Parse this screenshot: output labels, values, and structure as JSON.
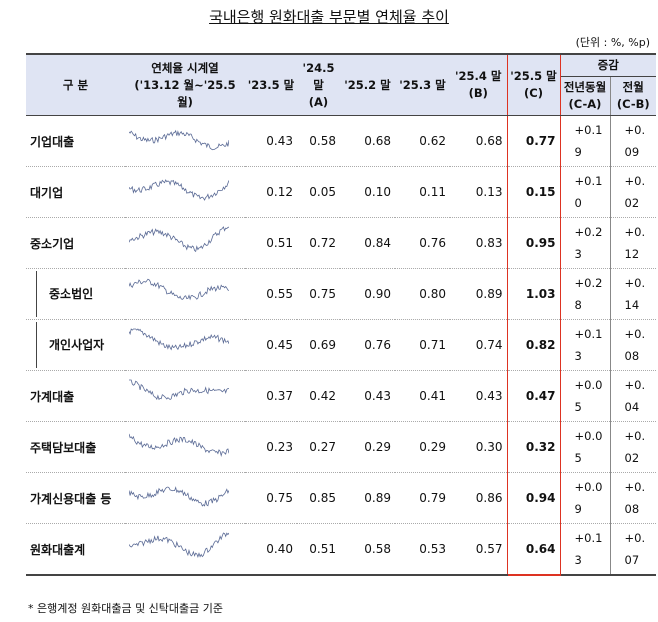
{
  "title": "국내은행 원화대출 부문별 연체율 추이",
  "unit": "(단위 : %, %p)",
  "columns": [
    {
      "label": "구 분"
    },
    {
      "label": "연체율 시계열",
      "sub": "('13.12 월~'25.5 월)"
    },
    {
      "label": "'23.5 말"
    },
    {
      "label": "'24.5 말",
      "sub": "(A)"
    },
    {
      "label": "'25.2 말"
    },
    {
      "label": "'25.3 말"
    },
    {
      "label": "'25.4 말",
      "sub": "(B)"
    },
    {
      "label": "'25.5 말",
      "sub": "(C)"
    }
  ],
  "change": {
    "label": "증감",
    "columns": [
      {
        "label": "전년동월",
        "sub": "(C-A)"
      },
      {
        "label": "전월",
        "sub": "(C-B)"
      }
    ]
  },
  "rows": [
    {
      "label": "기업대출",
      "values": [
        "0.43",
        "0.58",
        "0.68",
        "0.62",
        "0.68",
        "0.77"
      ],
      "change": [
        "+0.19",
        "+0.09"
      ]
    },
    {
      "label": "대기업",
      "values": [
        "0.12",
        "0.05",
        "0.10",
        "0.11",
        "0.13",
        "0.15"
      ],
      "change": [
        "+0.10",
        "+0.02"
      ]
    },
    {
      "label": "중소기업",
      "values": [
        "0.51",
        "0.72",
        "0.84",
        "0.76",
        "0.83",
        "0.95"
      ],
      "change": [
        "+0.23",
        "+0.12"
      ],
      "children": [
        {
          "label": "중소법인",
          "values": [
            "0.55",
            "0.75",
            "0.90",
            "0.80",
            "0.89",
            "1.03"
          ],
          "change": [
            "+0.28",
            "+0.14"
          ]
        },
        {
          "label": "개인사업자",
          "values": [
            "0.45",
            "0.69",
            "0.76",
            "0.71",
            "0.74",
            "0.82"
          ],
          "change": [
            "+0.13",
            "+0.08"
          ]
        }
      ]
    },
    {
      "label": "가계대출",
      "values": [
        "0.37",
        "0.42",
        "0.43",
        "0.41",
        "0.43",
        "0.47"
      ],
      "change": [
        "+0.05",
        "+0.04"
      ]
    },
    {
      "label": "주택담보대출",
      "values": [
        "0.23",
        "0.27",
        "0.29",
        "0.29",
        "0.30",
        "0.32"
      ],
      "change": [
        "+0.05",
        "+0.02"
      ]
    },
    {
      "label": "가계신용대출 등",
      "values": [
        "0.75",
        "0.85",
        "0.89",
        "0.79",
        "0.86",
        "0.94"
      ],
      "change": [
        "+0.09",
        "+0.08"
      ]
    },
    {
      "label": "원화대출계",
      "values": [
        "0.40",
        "0.51",
        "0.58",
        "0.53",
        "0.57",
        "0.64"
      ],
      "change": [
        "+0.13",
        "+0.07"
      ]
    }
  ],
  "footnote": "* 은행계정 원화대출금 및 신탁대출금 기준"
}
